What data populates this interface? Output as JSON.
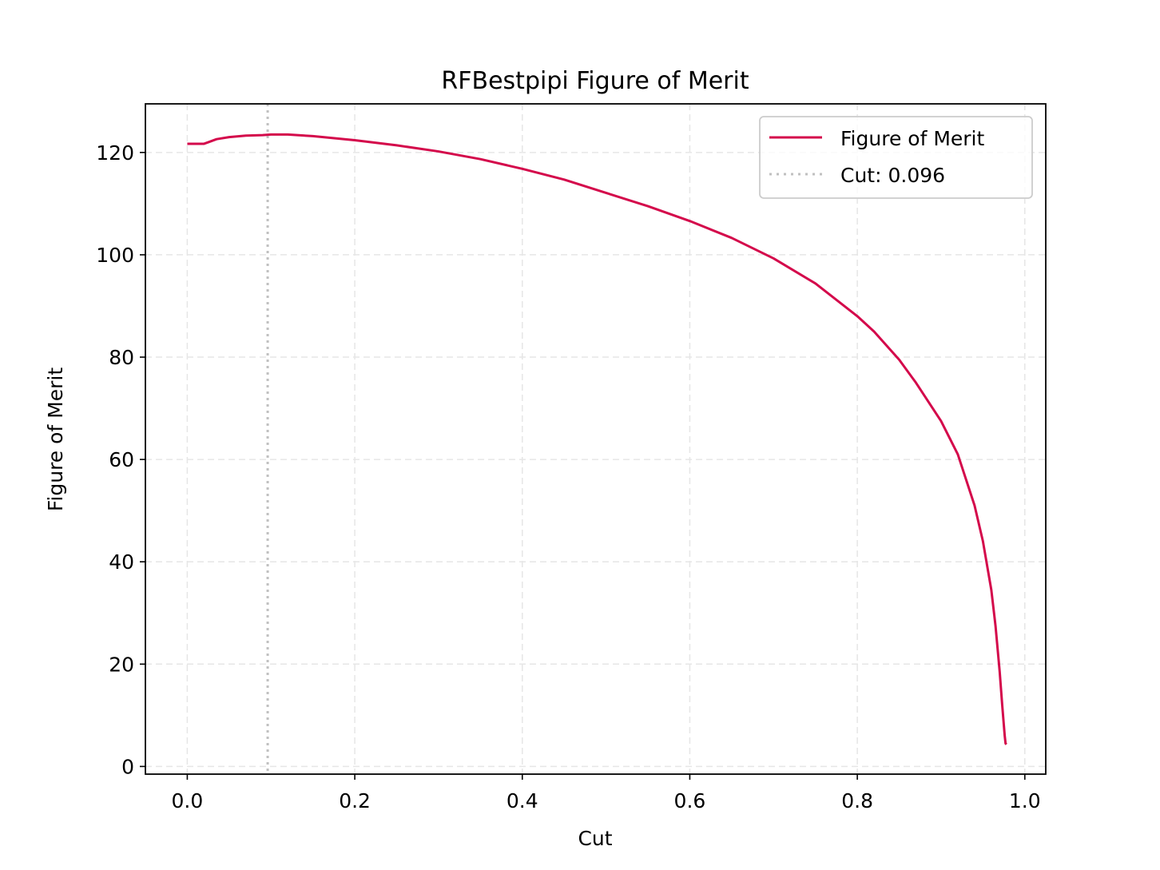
{
  "chart_data": {
    "type": "line",
    "title": "RFBestpipi Figure of Merit",
    "xlabel": "Cut",
    "ylabel": "Figure of Merit",
    "xlim": [
      -0.05,
      1.025
    ],
    "ylim": [
      -1.5,
      129.5
    ],
    "xticks": [
      0.0,
      0.2,
      0.4,
      0.6,
      0.8,
      1.0
    ],
    "xtick_labels": [
      "0.0",
      "0.2",
      "0.4",
      "0.6",
      "0.8",
      "1.0"
    ],
    "yticks": [
      0,
      20,
      40,
      60,
      80,
      100,
      120
    ],
    "ytick_labels": [
      "0",
      "20",
      "40",
      "60",
      "80",
      "100",
      "120"
    ],
    "grid": true,
    "legend_position": "upper-right",
    "series": [
      {
        "name": "Figure of Merit",
        "color": "#d4094b",
        "style": "solid",
        "x": [
          0.0,
          0.01,
          0.02,
          0.025,
          0.035,
          0.05,
          0.07,
          0.09,
          0.1,
          0.12,
          0.15,
          0.2,
          0.25,
          0.3,
          0.35,
          0.4,
          0.45,
          0.5,
          0.55,
          0.6,
          0.65,
          0.7,
          0.75,
          0.8,
          0.82,
          0.85,
          0.87,
          0.9,
          0.92,
          0.94,
          0.95,
          0.96,
          0.965,
          0.97,
          0.973,
          0.975,
          0.976,
          0.977,
          0.978
        ],
        "y": [
          121.7,
          121.7,
          121.7,
          122.0,
          122.6,
          123.0,
          123.3,
          123.4,
          123.5,
          123.5,
          123.2,
          122.4,
          121.4,
          120.2,
          118.7,
          116.8,
          114.7,
          112.1,
          109.5,
          106.6,
          103.3,
          99.3,
          94.4,
          88.0,
          85.0,
          79.5,
          75.0,
          67.5,
          61.0,
          51.0,
          44.0,
          34.5,
          27.5,
          18.5,
          12.0,
          8.0,
          6.0,
          4.5,
          4.3
        ]
      },
      {
        "name": "Cut: 0.096",
        "color": "#c0c0c0",
        "style": "dotted",
        "vline_x": 0.096
      }
    ]
  }
}
